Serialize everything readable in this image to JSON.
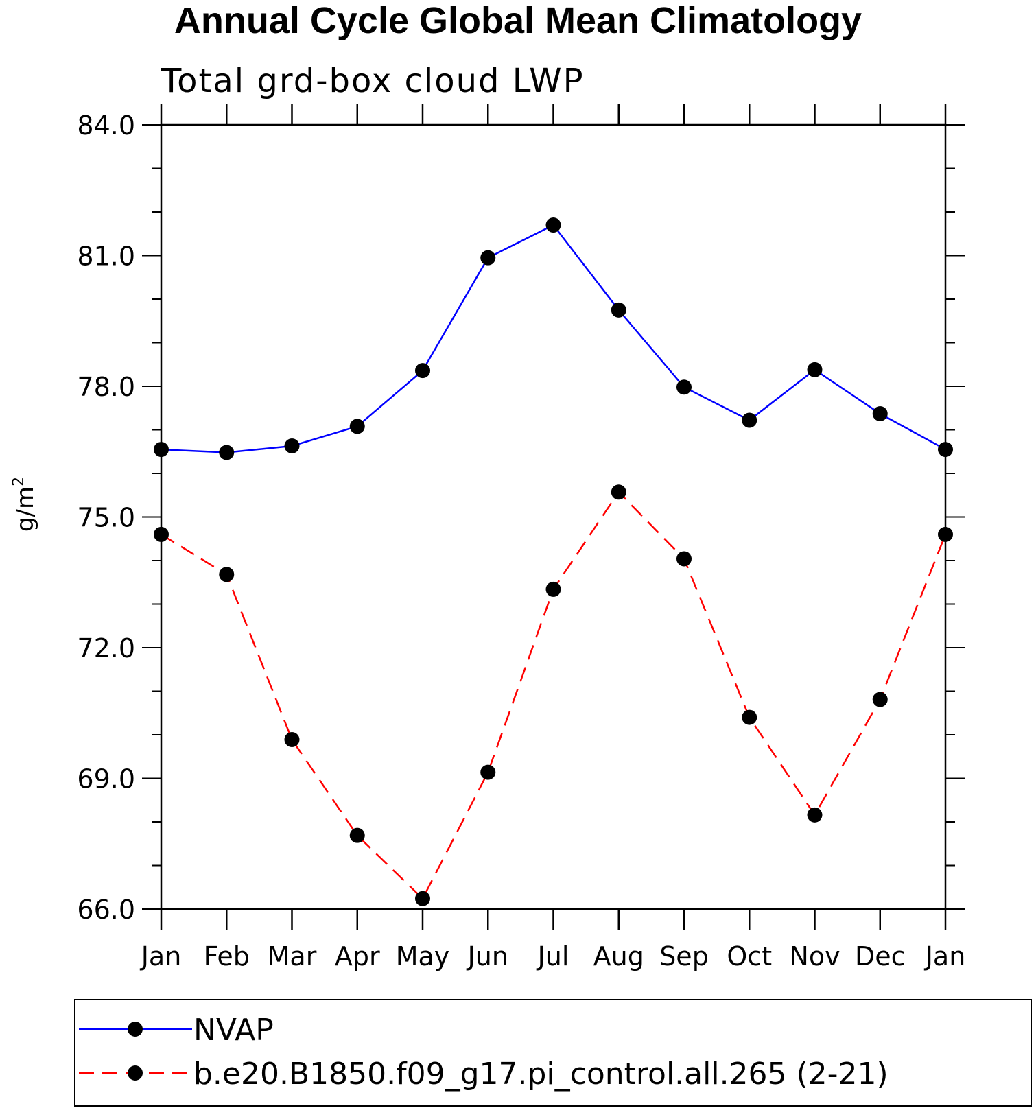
{
  "chart_data": {
    "type": "line",
    "title": "Annual Cycle Global Mean Climatology",
    "subtitle": "Total grd-box cloud LWP",
    "ylabel": "g/m",
    "ylabel_superscript": "2",
    "ylim": [
      66.0,
      84.0
    ],
    "yticks": [
      "66.0",
      "69.0",
      "72.0",
      "75.0",
      "78.0",
      "81.0",
      "84.0"
    ],
    "categories": [
      "Jan",
      "Feb",
      "Mar",
      "Apr",
      "May",
      "Jun",
      "Jul",
      "Aug",
      "Sep",
      "Oct",
      "Nov",
      "Dec",
      "Jan"
    ],
    "series": [
      {
        "name": "NVAP",
        "color": "#0000ff",
        "dash": "solid",
        "values": [
          76.55,
          76.48,
          76.63,
          77.08,
          78.36,
          80.95,
          81.7,
          79.75,
          77.98,
          77.22,
          78.38,
          77.37,
          76.55
        ]
      },
      {
        "name": "b.e20.B1850.f09_g17.pi_control.all.265 (2-21)",
        "color": "#ff0000",
        "dash": "dashed",
        "values": [
          74.6,
          73.68,
          69.89,
          67.69,
          66.24,
          69.14,
          73.34,
          75.57,
          74.04,
          70.4,
          68.16,
          70.81,
          74.6
        ]
      }
    ],
    "grid": false,
    "legend_position": "bottom"
  }
}
